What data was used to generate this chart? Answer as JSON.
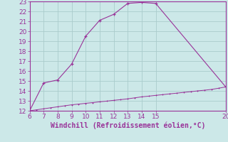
{
  "upper_x": [
    6,
    7,
    8,
    9,
    10,
    11,
    12,
    13,
    14,
    15,
    20
  ],
  "upper_y": [
    12.0,
    14.8,
    15.1,
    16.7,
    19.5,
    21.1,
    21.7,
    22.8,
    22.9,
    22.8,
    14.4
  ],
  "lower_x": [
    6,
    6.5,
    7,
    7.5,
    8,
    8.5,
    9,
    9.5,
    10,
    10.5,
    11,
    11.5,
    12,
    12.5,
    13,
    13.5,
    14,
    14.5,
    15,
    15.5,
    16,
    16.5,
    17,
    17.5,
    18,
    18.5,
    19,
    19.5,
    20
  ],
  "lower_y": [
    12.0,
    12.1,
    12.2,
    12.3,
    12.4,
    12.5,
    12.6,
    12.67,
    12.75,
    12.82,
    12.9,
    12.97,
    13.05,
    13.12,
    13.2,
    13.3,
    13.4,
    13.47,
    13.55,
    13.62,
    13.7,
    13.77,
    13.85,
    13.92,
    14.0,
    14.07,
    14.15,
    14.27,
    14.4
  ],
  "line_color": "#993399",
  "bg_color": "#cce8e8",
  "grid_color": "#aacccc",
  "xlabel": "Windchill (Refroidissement éolien,°C)",
  "xlim": [
    6,
    20
  ],
  "ylim": [
    12,
    23
  ],
  "xticks": [
    6,
    7,
    8,
    9,
    10,
    11,
    12,
    13,
    14,
    15,
    20
  ],
  "yticks": [
    12,
    13,
    14,
    15,
    16,
    17,
    18,
    19,
    20,
    21,
    22,
    23
  ],
  "xlabel_fontsize": 7.0,
  "tick_fontsize": 6.5,
  "marker_size": 3.5
}
